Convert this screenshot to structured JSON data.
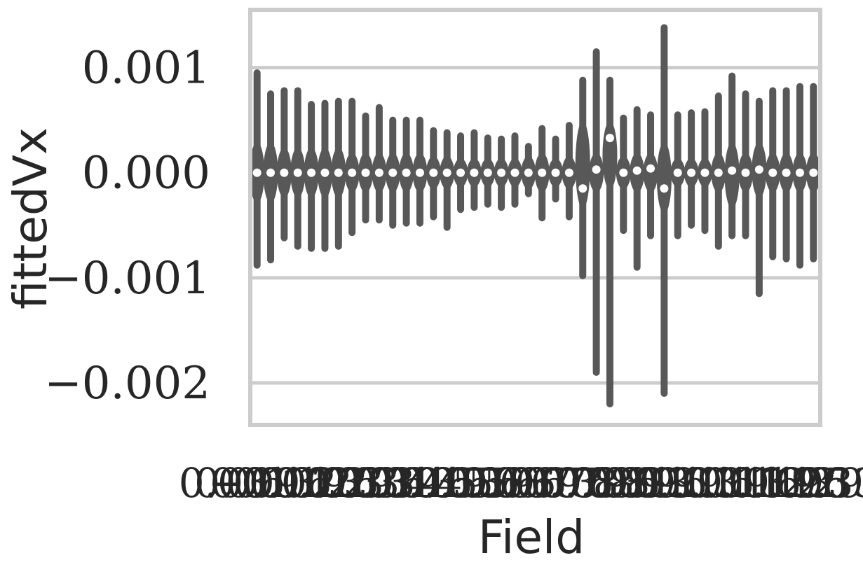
{
  "chart_data": {
    "type": "violin",
    "xlabel": "Field",
    "ylabel": "fittedVx",
    "ylim": [
      -0.0024,
      0.00155
    ],
    "yticks": [
      {
        "value": 0.001,
        "label": "0.001"
      },
      {
        "value": 0.0,
        "label": "0.000"
      },
      {
        "value": -0.001,
        "label": "−0.001"
      },
      {
        "value": -0.002,
        "label": "−0.002"
      }
    ],
    "grid": "y",
    "violin_color": "#585858",
    "median_color": "#ffffff",
    "frame_color": "#cccccc",
    "x_tick_labels": [
      "−0.01",
      "0.03",
      "0.06",
      "0.09",
      "0.13",
      "0.16",
      "0.19",
      "0.23",
      "0.26",
      "0.29",
      "0.33",
      "0.36",
      "0.39",
      "0.43",
      "0.46",
      "0.49",
      "0.53",
      "0.56",
      "0.59",
      "0.63",
      "0.66",
      "0.69",
      "0.73",
      "0.76",
      "0.79",
      "0.83",
      "0.86",
      "0.89",
      "0.93",
      "0.96",
      "0.99",
      "1.03",
      "1.06",
      "1.09",
      "1.13",
      "1.16",
      "1.19",
      "1.23",
      "1.26",
      "1.29",
      "1.33",
      "1.95"
    ],
    "violins": [
      {
        "median": 0.0,
        "min": -0.00088,
        "max": 0.00095,
        "q1": -0.00025,
        "q3": 0.00025
      },
      {
        "median": 0.0,
        "min": -0.00083,
        "max": 0.00075,
        "q1": -0.00025,
        "q3": 0.00025
      },
      {
        "median": 0.0,
        "min": -0.00062,
        "max": 0.00078,
        "q1": -0.0002,
        "q3": 0.0002
      },
      {
        "median": 0.0,
        "min": -0.0007,
        "max": 0.00078,
        "q1": -0.0002,
        "q3": 0.0002
      },
      {
        "median": 0.0,
        "min": -0.00072,
        "max": 0.00065,
        "q1": -0.0002,
        "q3": 0.0002
      },
      {
        "median": 0.0,
        "min": -0.00072,
        "max": 0.00066,
        "q1": -0.0002,
        "q3": 0.0002
      },
      {
        "median": 0.0,
        "min": -0.0007,
        "max": 0.00068,
        "q1": -0.0002,
        "q3": 0.0002
      },
      {
        "median": 0.0,
        "min": -0.00057,
        "max": 0.00068,
        "q1": -0.00015,
        "q3": 0.00015
      },
      {
        "median": 0.0,
        "min": -0.00045,
        "max": 0.00054,
        "q1": -0.00015,
        "q3": 0.00015
      },
      {
        "median": 0.0,
        "min": -0.00045,
        "max": 0.00062,
        "q1": -0.00015,
        "q3": 0.00015
      },
      {
        "median": 0.0,
        "min": -0.0005,
        "max": 0.0005,
        "q1": -0.00015,
        "q3": 0.00015
      },
      {
        "median": 0.0,
        "min": -0.00048,
        "max": 0.0005,
        "q1": -0.00015,
        "q3": 0.00015
      },
      {
        "median": 0.0,
        "min": -0.00048,
        "max": 0.0005,
        "q1": -0.00015,
        "q3": 0.00015
      },
      {
        "median": 0.0,
        "min": -0.00042,
        "max": 0.0004,
        "q1": -0.00012,
        "q3": 0.00012
      },
      {
        "median": 0.0,
        "min": -0.00052,
        "max": 0.00038,
        "q1": -0.00012,
        "q3": 0.00012
      },
      {
        "median": 0.0,
        "min": -0.00035,
        "max": 0.00035,
        "q1": -0.0001,
        "q3": 0.0001
      },
      {
        "median": 0.0,
        "min": -0.00033,
        "max": 0.00038,
        "q1": -0.0001,
        "q3": 0.0001
      },
      {
        "median": 0.0,
        "min": -0.0003,
        "max": 0.00033,
        "q1": -0.0001,
        "q3": 0.0001
      },
      {
        "median": 0.0,
        "min": -0.00033,
        "max": 0.00032,
        "q1": -0.0001,
        "q3": 0.0001
      },
      {
        "median": 0.0,
        "min": -0.0003,
        "max": 0.00035,
        "q1": -0.0001,
        "q3": 0.0001
      },
      {
        "median": 0.0,
        "min": -0.0002,
        "max": 0.00025,
        "q1": -0.00012,
        "q3": 0.00012
      },
      {
        "median": 0.0,
        "min": -0.00043,
        "max": 0.00042,
        "q1": -0.00015,
        "q3": 0.00015
      },
      {
        "median": 0.0,
        "min": -0.00025,
        "max": 0.00032,
        "q1": -0.0001,
        "q3": 0.0001
      },
      {
        "median": 0.0,
        "min": -0.00042,
        "max": 0.00045,
        "q1": -0.00012,
        "q3": 0.00012
      },
      {
        "median": -0.00015,
        "min": -0.00098,
        "max": 0.00088,
        "q1": -0.0003,
        "q3": 0.00045
      },
      {
        "median": 3e-05,
        "min": -0.0019,
        "max": 0.00115,
        "q1": -0.00015,
        "q3": 0.00015
      },
      {
        "median": 0.00033,
        "min": -0.0022,
        "max": 0.00088,
        "q1": -0.00012,
        "q3": 0.00045
      },
      {
        "median": 0.0,
        "min": -0.00055,
        "max": 0.00052,
        "q1": -0.00012,
        "q3": 0.00012
      },
      {
        "median": 2e-05,
        "min": -0.0009,
        "max": 0.0006,
        "q1": -0.00015,
        "q3": 0.00015
      },
      {
        "median": 4e-05,
        "min": -0.0006,
        "max": 0.00055,
        "q1": -0.00015,
        "q3": 0.00015
      },
      {
        "median": -0.00015,
        "min": -0.0021,
        "max": 0.00138,
        "q1": -0.00035,
        "q3": 0.00025
      },
      {
        "median": 0.0,
        "min": -0.0006,
        "max": 0.00055,
        "q1": -0.0001,
        "q3": 0.0001
      },
      {
        "median": 0.0,
        "min": -0.0005,
        "max": 0.00057,
        "q1": -0.0001,
        "q3": 0.0001
      },
      {
        "median": 0.0,
        "min": -0.00055,
        "max": 0.00058,
        "q1": -0.0001,
        "q3": 0.0001
      },
      {
        "median": 0.0,
        "min": -0.0007,
        "max": 0.00073,
        "q1": -0.00015,
        "q3": 0.00015
      },
      {
        "median": 2e-05,
        "min": -0.0006,
        "max": 0.00092,
        "q1": -0.0003,
        "q3": 0.00025
      },
      {
        "median": 0.0,
        "min": -0.0006,
        "max": 0.00075,
        "q1": -0.00015,
        "q3": 0.00015
      },
      {
        "median": 3e-05,
        "min": -0.00115,
        "max": 0.00068,
        "q1": -0.0002,
        "q3": 0.00025
      },
      {
        "median": 0.0,
        "min": -0.0008,
        "max": 0.00078,
        "q1": -0.00015,
        "q3": 0.00015
      },
      {
        "median": 0.0,
        "min": -0.00082,
        "max": 0.00078,
        "q1": -0.00015,
        "q3": 0.00015
      },
      {
        "median": 0.0,
        "min": -0.00088,
        "max": 0.00082,
        "q1": -0.00015,
        "q3": 0.00015
      },
      {
        "median": 0.0,
        "min": -0.00082,
        "max": 0.00082,
        "q1": -0.00015,
        "q3": 0.00015
      }
    ]
  }
}
